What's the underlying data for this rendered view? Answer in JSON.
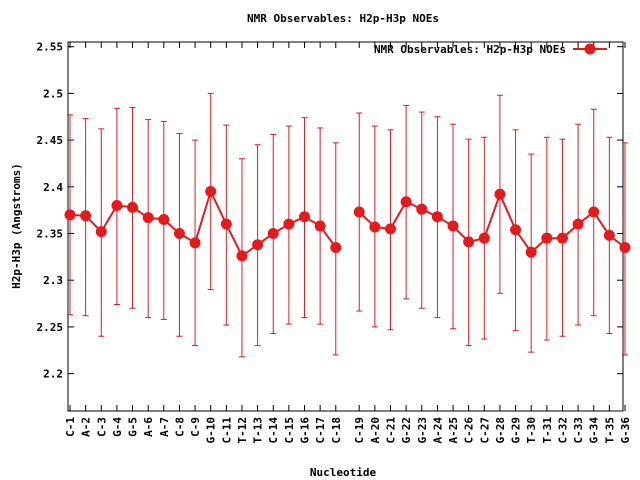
{
  "chart_data": {
    "type": "line",
    "title": "NMR Observables: H2p-H3p NOEs",
    "xlabel": "Nucleotide",
    "ylabel": "H2p-H3p (Angstroms)",
    "ylim": [
      2.16,
      2.555
    ],
    "yticks": [
      "2.2",
      "2.25",
      "2.3",
      "2.35",
      "2.4",
      "2.45",
      "2.5",
      "2.55"
    ],
    "legend_position": "top-right",
    "grid": false,
    "series_color": "#e41a1c",
    "categories": [
      "C-1",
      "A-2",
      "C-3",
      "G-4",
      "G-5",
      "A-6",
      "A-7",
      "C-8",
      "C-9",
      "G-10",
      "C-11",
      "T-12",
      "T-13",
      "C-14",
      "C-15",
      "G-16",
      "C-17",
      "C-18",
      "C-19",
      "A-20",
      "C-21",
      "G-22",
      "G-23",
      "A-24",
      "A-25",
      "C-26",
      "C-27",
      "G-28",
      "G-29",
      "T-30",
      "T-31",
      "C-32",
      "C-33",
      "G-34",
      "T-35",
      "G-36"
    ],
    "series": [
      {
        "name": "NMR Observables: H2p-H3p NOEs",
        "segments": [
          [
            0,
            17
          ],
          [
            18,
            35
          ]
        ],
        "values": [
          2.37,
          2.369,
          2.352,
          2.38,
          2.378,
          2.367,
          2.365,
          2.35,
          2.34,
          2.395,
          2.36,
          2.326,
          2.338,
          2.35,
          2.36,
          2.368,
          2.358,
          2.335,
          2.373,
          2.357,
          2.355,
          2.384,
          2.376,
          2.368,
          2.358,
          2.341,
          2.345,
          2.392,
          2.354,
          2.33,
          2.345,
          2.345,
          2.36,
          2.373,
          2.348,
          2.335
        ],
        "lower": [
          2.263,
          2.262,
          2.24,
          2.274,
          2.27,
          2.26,
          2.258,
          2.24,
          2.23,
          2.29,
          2.252,
          2.218,
          2.23,
          2.243,
          2.253,
          2.26,
          2.253,
          2.22,
          2.267,
          2.25,
          2.247,
          2.28,
          2.27,
          2.26,
          2.248,
          2.23,
          2.237,
          2.286,
          2.246,
          2.223,
          2.236,
          2.24,
          2.252,
          2.262,
          2.243,
          2.22
        ],
        "upper": [
          2.477,
          2.473,
          2.462,
          2.484,
          2.485,
          2.472,
          2.47,
          2.457,
          2.45,
          2.5,
          2.466,
          2.43,
          2.445,
          2.456,
          2.465,
          2.474,
          2.463,
          2.447,
          2.479,
          2.465,
          2.461,
          2.487,
          2.48,
          2.475,
          2.467,
          2.451,
          2.453,
          2.498,
          2.461,
          2.435,
          2.453,
          2.451,
          2.467,
          2.483,
          2.453,
          2.447
        ]
      }
    ]
  }
}
